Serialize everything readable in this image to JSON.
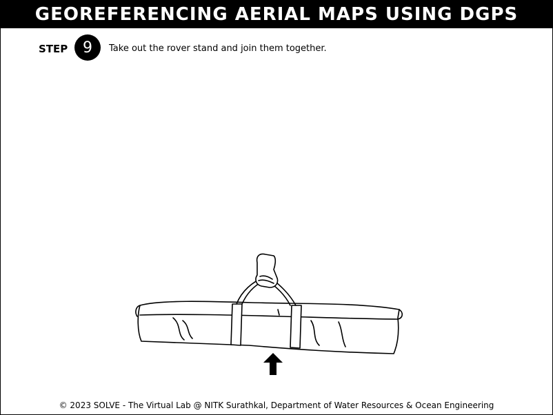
{
  "header": {
    "title": "GEOREFERENCING AERIAL MAPS USING DGPS"
  },
  "step": {
    "label": "STEP",
    "number": "9",
    "instruction": "Take out the rover stand and join them together."
  },
  "illustration": {
    "icon": "rover-stand-bag-icon",
    "indicator_icon": "up-arrow-icon"
  },
  "footer": {
    "text": "© 2023 SOLVE - The Virtual Lab @ NITK Surathkal, Department of Water Resources & Ocean Engineering"
  }
}
